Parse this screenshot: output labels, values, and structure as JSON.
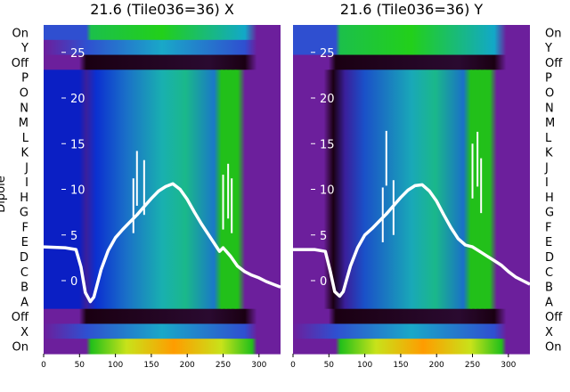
{
  "colors": {
    "blue": "#0b1fc4",
    "purple": "#6c1f9c",
    "black": "#1a0012",
    "teal": "#2a7fc8",
    "cyan": "#19b0b0",
    "green": "#22c01a",
    "yellow": "#e9e41a",
    "orange": "#ff9c00",
    "trace": "#ffffff"
  },
  "row_labels": [
    "On",
    "Y",
    "Off",
    "P",
    "O",
    "N",
    "M",
    "L",
    "K",
    "J",
    "I",
    "H",
    "G",
    "F",
    "E",
    "D",
    "C",
    "B",
    "A",
    "Off",
    "X",
    "On"
  ],
  "side_label": "Dipole",
  "chart_data": [
    {
      "type": "heatmap",
      "title": "21.6 (Tile036=36) X",
      "xlabel": "",
      "ylabel": "Dipole",
      "xlim": [
        0,
        330
      ],
      "xticks": [
        "0",
        "50",
        "100",
        "150",
        "200",
        "250",
        "300"
      ],
      "yticks": [
        "0",
        "5",
        "10",
        "15",
        "20",
        "25"
      ],
      "ylim": [
        -8,
        28
      ],
      "overlay_series": {
        "name": "",
        "x": [
          0,
          30,
          45,
          52,
          58,
          65,
          70,
          80,
          90,
          100,
          110,
          120,
          130,
          140,
          150,
          160,
          170,
          180,
          190,
          200,
          210,
          220,
          230,
          240,
          245,
          250,
          260,
          270,
          280,
          290,
          300,
          310,
          320,
          330
        ],
        "y": [
          3.7,
          3.6,
          3.4,
          1.5,
          -1.3,
          -2.3,
          -1.8,
          1.2,
          3.3,
          4.7,
          5.6,
          6.4,
          7.2,
          8.1,
          9.0,
          9.8,
          10.3,
          10.6,
          10.0,
          8.9,
          7.5,
          6.2,
          5.0,
          3.8,
          3.2,
          3.6,
          2.7,
          1.6,
          1.0,
          0.6,
          0.3,
          -0.1,
          -0.4,
          -0.7
        ],
        "spikes": [
          {
            "x": 125,
            "y": 11.2
          },
          {
            "x": 130,
            "y": 14.2
          },
          {
            "x": 140,
            "y": 13.2
          },
          {
            "x": 250,
            "y": 11.6
          },
          {
            "x": 257,
            "y": 12.8
          },
          {
            "x": 262,
            "y": 11.2
          }
        ]
      }
    },
    {
      "type": "heatmap",
      "title": "21.6 (Tile036=36) Y",
      "xlabel": "",
      "ylabel": "",
      "xlim": [
        0,
        330
      ],
      "xticks": [
        "0",
        "50",
        "100",
        "150",
        "200",
        "250",
        "300"
      ],
      "yticks": [
        "0",
        "5",
        "10",
        "15",
        "20",
        "25"
      ],
      "ylim": [
        -8,
        28
      ],
      "overlay_series": {
        "name": "",
        "x": [
          0,
          30,
          45,
          52,
          58,
          65,
          70,
          80,
          90,
          100,
          110,
          120,
          130,
          140,
          150,
          160,
          170,
          180,
          190,
          200,
          210,
          220,
          230,
          240,
          245,
          250,
          260,
          270,
          280,
          290,
          300,
          310,
          320,
          330
        ],
        "y": [
          3.4,
          3.4,
          3.2,
          1.0,
          -1.2,
          -1.7,
          -1.2,
          1.6,
          3.6,
          5.0,
          5.7,
          6.5,
          7.3,
          8.2,
          9.1,
          9.9,
          10.4,
          10.5,
          9.8,
          8.7,
          7.2,
          5.8,
          4.6,
          3.9,
          3.8,
          3.7,
          3.2,
          2.7,
          2.2,
          1.7,
          1.0,
          0.4,
          0.0,
          -0.4
        ],
        "spikes": [
          {
            "x": 125,
            "y": 10.2
          },
          {
            "x": 130,
            "y": 16.4
          },
          {
            "x": 140,
            "y": 11.0
          },
          {
            "x": 250,
            "y": 15.0
          },
          {
            "x": 257,
            "y": 16.3
          },
          {
            "x": 262,
            "y": 13.4
          }
        ]
      }
    }
  ]
}
